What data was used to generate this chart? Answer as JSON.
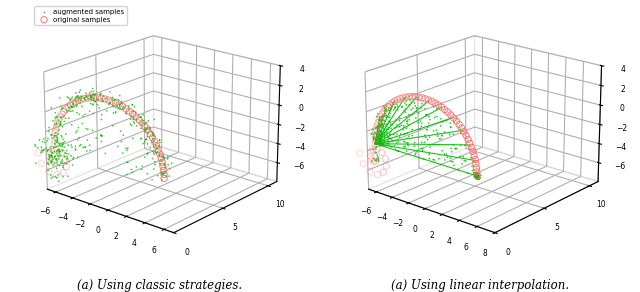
{
  "title_left": "(a) Using classic strategies.",
  "title_right": "(a) Using linear interpolation.",
  "legend_original": "original samples",
  "legend_augmented": "augmented samples",
  "original_color": "#FF7070",
  "augmented_color": "#00BB00",
  "original_marker": "o",
  "augmented_marker": ".",
  "original_markersize": 4.5,
  "augmented_markersize": 2.5,
  "fig_width": 6.4,
  "fig_height": 2.92,
  "dpi": 100,
  "elev": 20,
  "azim": -50
}
